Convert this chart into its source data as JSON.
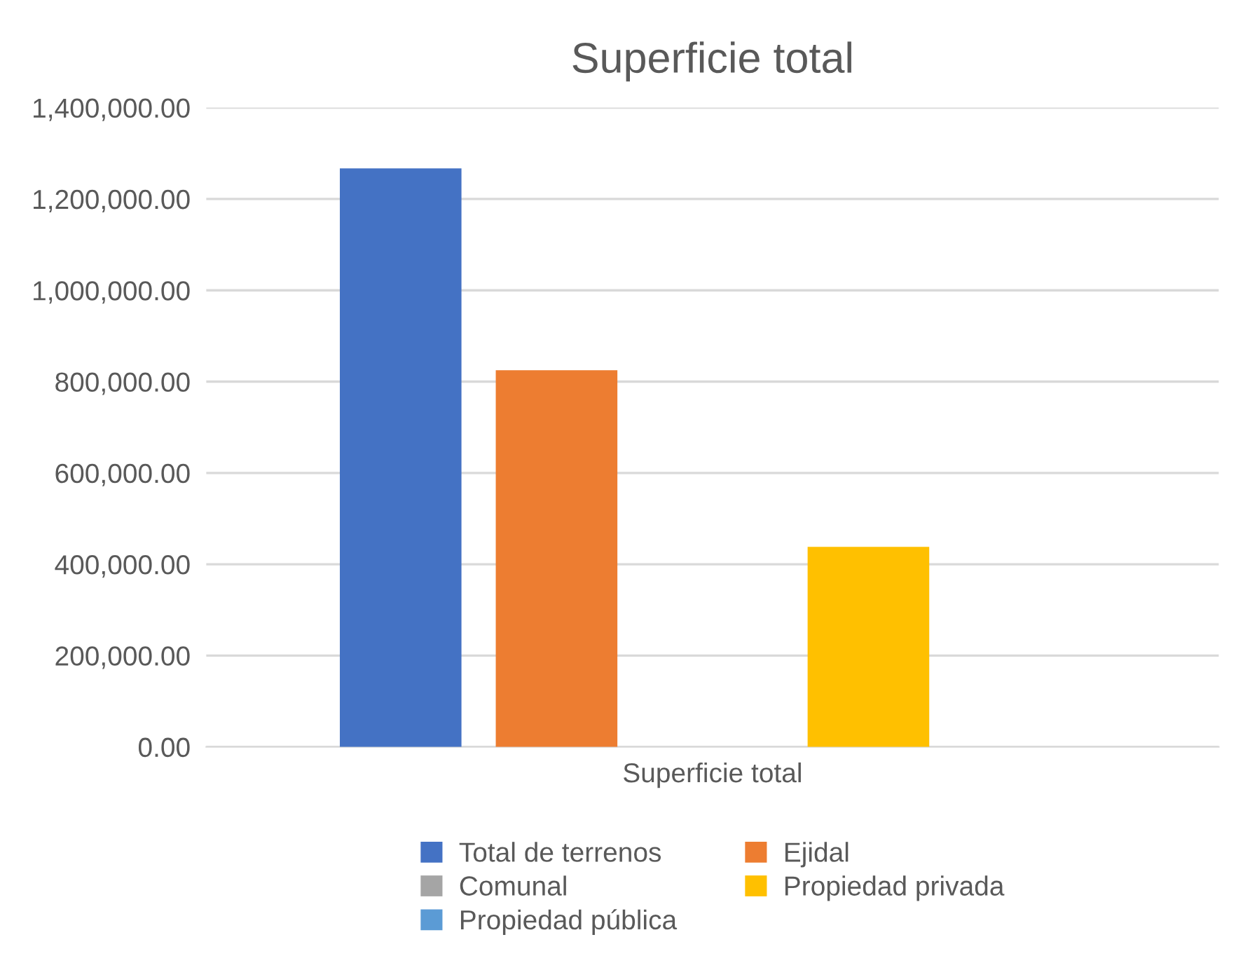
{
  "chart_data": {
    "type": "bar",
    "title": "Superficie total",
    "categories": [
      "Superficie total"
    ],
    "series": [
      {
        "name": "Total de terrenos",
        "color": "#4472c4",
        "values": [
          1267000
        ]
      },
      {
        "name": "Ejidal",
        "color": "#ed7d31",
        "values": [
          825000
        ]
      },
      {
        "name": "Comunal",
        "color": "#a5a5a5",
        "values": [
          0
        ]
      },
      {
        "name": "Propiedad privada",
        "color": "#ffc000",
        "values": [
          438000
        ]
      },
      {
        "name": "Propiedad pública",
        "color": "#5b9bd5",
        "values": [
          0
        ]
      }
    ],
    "ylim": [
      0,
      1400000
    ],
    "yticks": [
      {
        "value": 0,
        "label": "0.00"
      },
      {
        "value": 200000,
        "label": "200,000.00"
      },
      {
        "value": 400000,
        "label": "400,000.00"
      },
      {
        "value": 600000,
        "label": "600,000.00"
      },
      {
        "value": 800000,
        "label": "800,000.00"
      },
      {
        "value": 1000000,
        "label": "1,000,000.00"
      },
      {
        "value": 1200000,
        "label": "1,200,000.00"
      },
      {
        "value": 1400000,
        "label": "1,400,000.00"
      }
    ],
    "grid": "y",
    "legend": "bottom"
  }
}
